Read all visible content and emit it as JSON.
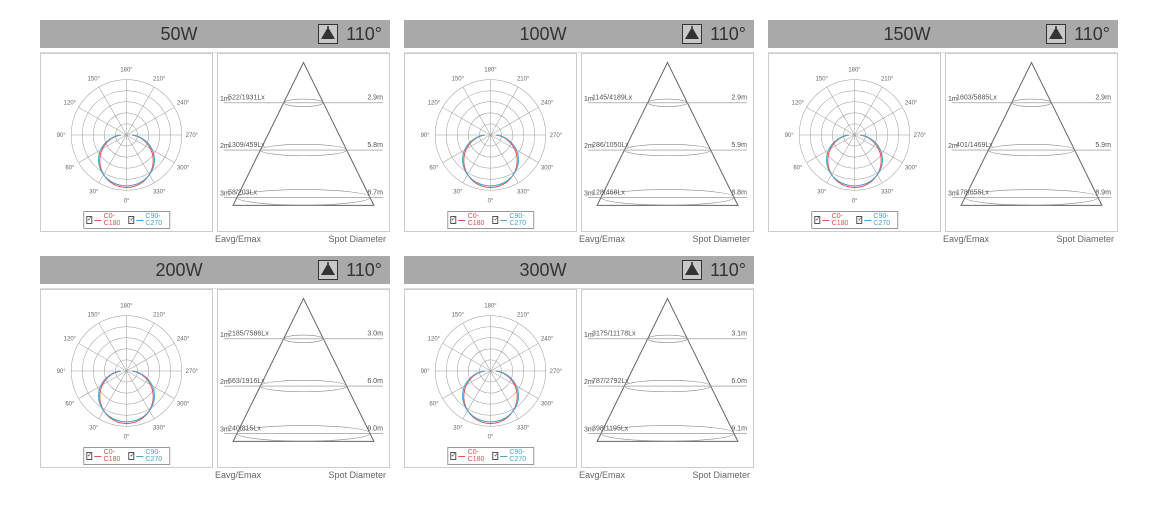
{
  "beam_angle": "110°",
  "legend": {
    "c0": "C0-C180",
    "c90": "C90-C270",
    "c0_color": "#d9534f",
    "c90_color": "#4aa3d0"
  },
  "polar": {
    "angle_labels": [
      "0°",
      "30°",
      "60°",
      "90°",
      "120°",
      "150°",
      "180°",
      "210°",
      "240°",
      "270°",
      "300°",
      "330°"
    ],
    "rings": 5,
    "curve_color_1": "#d9534f",
    "curve_color_2": "#4aa3d0",
    "grid_color": "#999999"
  },
  "cone": {
    "left_axis_label": "Eavg/Emax",
    "right_axis_label": "Spot Diameter",
    "y_marks": [
      "1m",
      "2m",
      "3m"
    ]
  },
  "panels": [
    {
      "wattage": "50W",
      "rows": [
        {
          "lux": "522/1931Lx",
          "diam": "2.9m"
        },
        {
          "lux": "1309/459Lx",
          "diam": "5.8m"
        },
        {
          "lux": "58/203Lx",
          "diam": "8.7m"
        }
      ]
    },
    {
      "wattage": "100W",
      "rows": [
        {
          "lux": "1145/4189Lx",
          "diam": "2.9m"
        },
        {
          "lux": "286/1050Lx",
          "diam": "5.9m"
        },
        {
          "lux": "128/468Lx",
          "diam": "8.8m"
        }
      ]
    },
    {
      "wattage": "150W",
      "rows": [
        {
          "lux": "1603/5885Lx",
          "diam": "2.9m"
        },
        {
          "lux": "401/1469Lx",
          "diam": "5.9m"
        },
        {
          "lux": "178/655Lx",
          "diam": "8.9m"
        }
      ]
    },
    {
      "wattage": "200W",
      "rows": [
        {
          "lux": "2185/7586Lx",
          "diam": "3.0m"
        },
        {
          "lux": "563/1916Lx",
          "diam": "6.0m"
        },
        {
          "lux": "240/815Lx",
          "diam": "9.0m"
        }
      ]
    },
    {
      "wattage": "300W",
      "rows": [
        {
          "lux": "3175/11178Lx",
          "diam": "3.1m"
        },
        {
          "lux": "787/2792Lx",
          "diam": "6.0m"
        },
        {
          "lux": "398/1195Lx",
          "diam": "9.1m"
        }
      ]
    }
  ]
}
